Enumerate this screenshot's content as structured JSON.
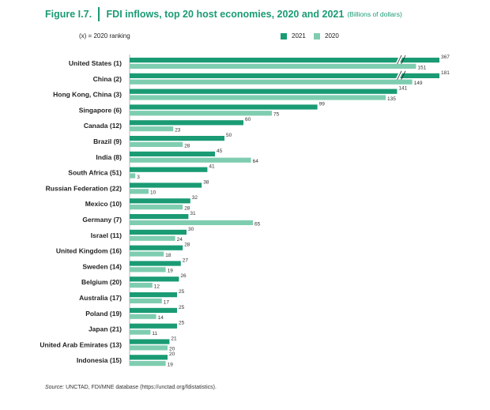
{
  "figure": {
    "number": "Figure I.7.",
    "title": "FDI inflows, top 20 host economies, 2020 and 2021",
    "subtitle": "(Billions of dollars)",
    "rank_note": "(x) = 2020  ranking",
    "source_label": "Source:",
    "source_text": "UNCTAD, FDI/MNE database (https://unctad.org/fdistatistics)."
  },
  "colors": {
    "s2021": "#1a9b74",
    "s2020": "#7fcdb0",
    "accent": "#1a9b74"
  },
  "chart_data": {
    "type": "bar",
    "orientation": "horizontal",
    "title": "FDI inflows, top 20 host economies, 2020 and 2021",
    "subtitle": "(Billions of dollars)",
    "categories": [
      "United States (1)",
      "China (2)",
      "Hong Kong, China (3)",
      "Singapore (6)",
      "Canada (12)",
      "Brazil (9)",
      "India (8)",
      "South Africa (51)",
      "Russian Federation (22)",
      "Mexico (10)",
      "Germany (7)",
      "Israel (11)",
      "United Kingdom (16)",
      "Sweden (14)",
      "Belgium (20)",
      "Australia (17)",
      "Poland (19)",
      "Japan (21)",
      "United Arab Emirates (13)",
      "Indonesia (15)"
    ],
    "series": [
      {
        "name": "2021",
        "values": [
          367,
          181,
          141,
          99,
          60,
          50,
          45,
          41,
          38,
          32,
          31,
          30,
          28,
          27,
          26,
          25,
          25,
          25,
          21,
          20
        ]
      },
      {
        "name": "2020",
        "values": [
          151,
          149,
          135,
          75,
          23,
          28,
          64,
          3,
          10,
          28,
          65,
          24,
          18,
          19,
          12,
          17,
          14,
          11,
          20,
          19
        ]
      }
    ],
    "axis_break": true,
    "legend_position": "top-right",
    "grid": false
  }
}
